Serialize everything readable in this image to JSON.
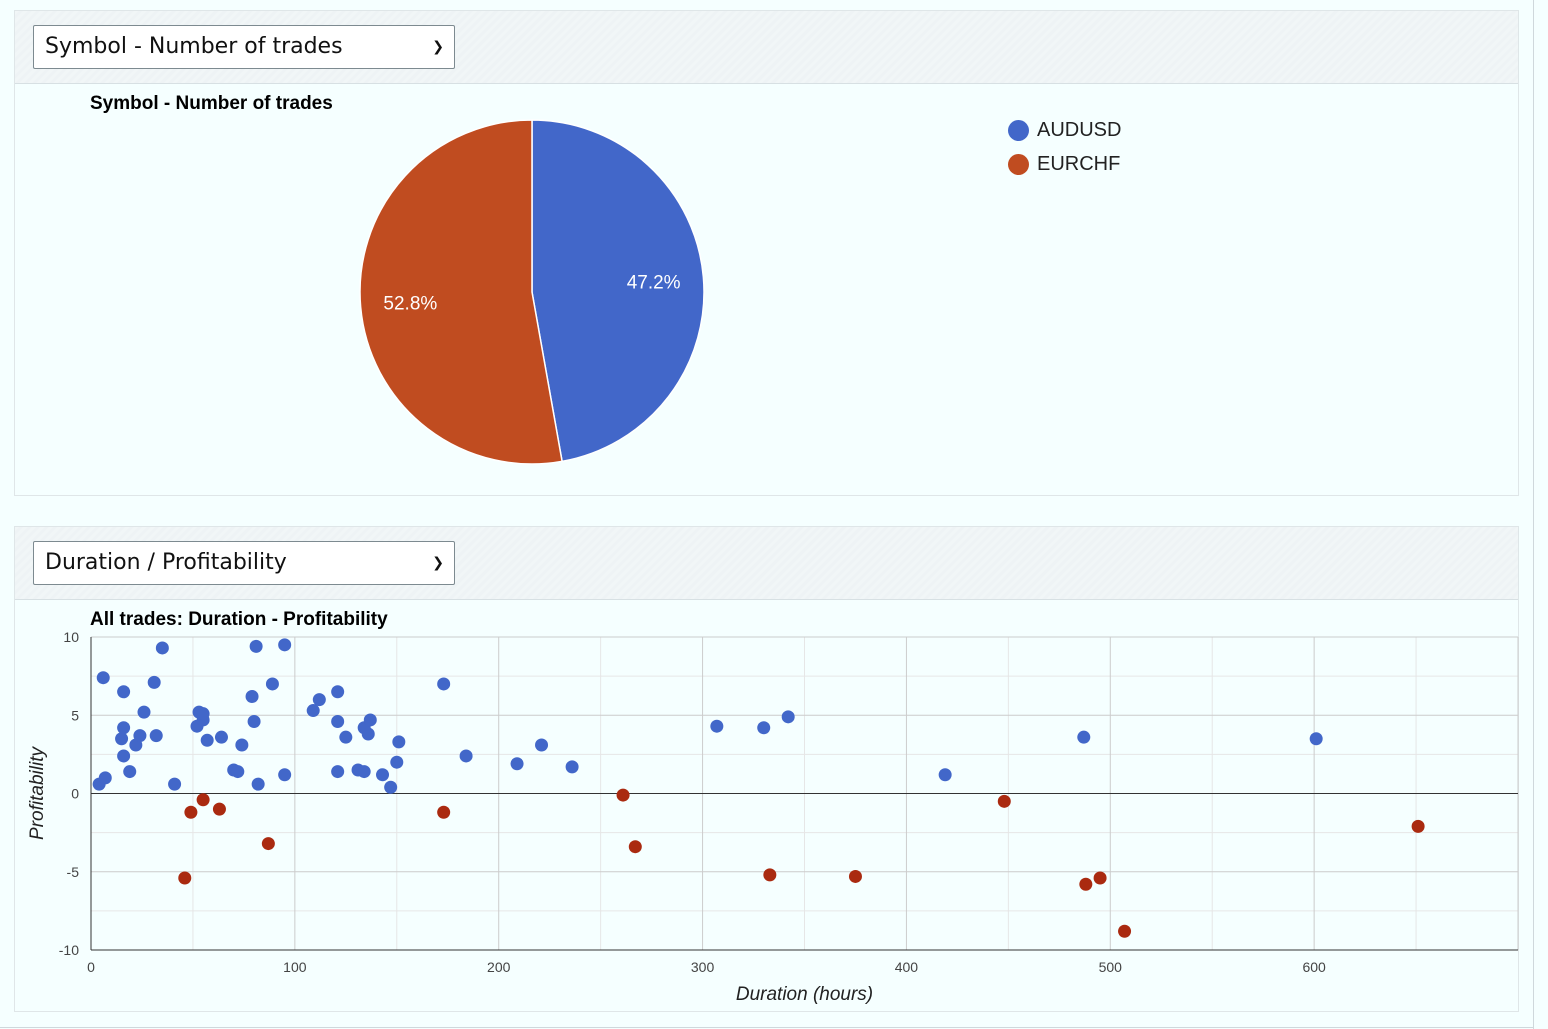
{
  "selectors": {
    "top": {
      "value": "Symbol - Number of trades"
    },
    "bottom": {
      "value": "Duration / Profitability"
    }
  },
  "chart_data": [
    {
      "type": "pie",
      "title": "Symbol - Number of trades",
      "slices": [
        {
          "label": "AUDUSD",
          "value": 47.2,
          "display": "47.2%",
          "color": "#4267c9"
        },
        {
          "label": "EURCHF",
          "value": 52.8,
          "display": "52.8%",
          "color": "#c04c20"
        }
      ],
      "legend_position": "right"
    },
    {
      "type": "scatter",
      "title": "All trades: Duration - Profitability",
      "xlabel": "Duration (hours)",
      "ylabel": "Profitability",
      "xlim": [
        0,
        700
      ],
      "ylim": [
        -10,
        10
      ],
      "xticks": [
        0,
        100,
        200,
        300,
        400,
        500,
        600
      ],
      "yticks": [
        -10,
        -5,
        0,
        5,
        10
      ],
      "grid": true,
      "series": [
        {
          "color": "#4267c9",
          "points": [
            [
              4,
              0.6
            ],
            [
              6,
              7.4
            ],
            [
              7,
              1.0
            ],
            [
              15,
              3.5
            ],
            [
              16,
              6.5
            ],
            [
              16,
              4.2
            ],
            [
              16,
              2.4
            ],
            [
              19,
              1.4
            ],
            [
              22,
              3.1
            ],
            [
              24,
              3.7
            ],
            [
              26,
              5.2
            ],
            [
              31,
              7.1
            ],
            [
              32,
              3.7
            ],
            [
              35,
              9.3
            ],
            [
              41,
              0.6
            ],
            [
              52,
              4.3
            ],
            [
              53,
              5.2
            ],
            [
              55,
              4.7
            ],
            [
              55,
              5.1
            ],
            [
              57,
              3.4
            ],
            [
              64,
              3.6
            ],
            [
              70,
              1.5
            ],
            [
              72,
              1.4
            ],
            [
              74,
              3.1
            ],
            [
              79,
              6.2
            ],
            [
              80,
              4.6
            ],
            [
              81,
              9.4
            ],
            [
              82,
              0.6
            ],
            [
              89,
              7.0
            ],
            [
              95,
              9.5
            ],
            [
              95,
              1.2
            ],
            [
              109,
              5.3
            ],
            [
              112,
              6.0
            ],
            [
              121,
              6.5
            ],
            [
              121,
              4.6
            ],
            [
              121,
              1.4
            ],
            [
              125,
              3.6
            ],
            [
              131,
              1.5
            ],
            [
              134,
              1.4
            ],
            [
              134,
              4.2
            ],
            [
              136,
              3.8
            ],
            [
              137,
              4.7
            ],
            [
              143,
              1.2
            ],
            [
              147,
              0.4
            ],
            [
              150,
              2.0
            ],
            [
              151,
              3.3
            ],
            [
              173,
              7.0
            ],
            [
              184,
              2.4
            ],
            [
              209,
              1.9
            ],
            [
              221,
              3.1
            ],
            [
              236,
              1.7
            ],
            [
              307,
              4.3
            ],
            [
              330,
              4.2
            ],
            [
              342,
              4.9
            ],
            [
              419,
              1.2
            ],
            [
              487,
              3.6
            ],
            [
              601,
              3.5
            ]
          ]
        },
        {
          "color": "#aa2a10",
          "points": [
            [
              46,
              -5.4
            ],
            [
              49,
              -1.2
            ],
            [
              55,
              -0.4
            ],
            [
              63,
              -1.0
            ],
            [
              87,
              -3.2
            ],
            [
              173,
              -1.2
            ],
            [
              261,
              -0.1
            ],
            [
              267,
              -3.4
            ],
            [
              333,
              -5.2
            ],
            [
              375,
              -5.3
            ],
            [
              448,
              -0.5
            ],
            [
              488,
              -5.8
            ],
            [
              495,
              -5.4
            ],
            [
              507,
              -8.8
            ],
            [
              651,
              -2.1
            ]
          ]
        }
      ]
    }
  ]
}
